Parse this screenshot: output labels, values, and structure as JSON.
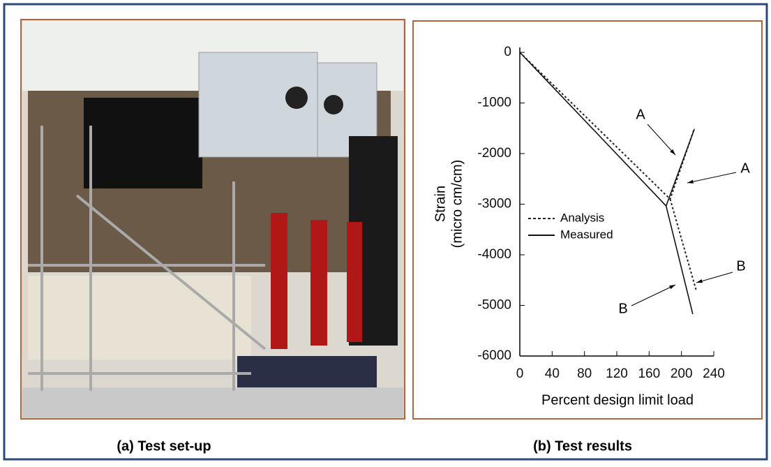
{
  "panels": {
    "left_caption": "(a) Test set-up",
    "right_caption": "(b) Test results"
  },
  "chart_data": {
    "type": "line",
    "xlabel": "Percent design limit load",
    "ylabel": [
      "Strain",
      "(micro cm/cm)"
    ],
    "xlim": [
      0,
      240
    ],
    "ylim": [
      -6000,
      0
    ],
    "xticks": [
      0,
      40,
      80,
      120,
      160,
      200,
      240
    ],
    "yticks": [
      0,
      -1000,
      -2000,
      -3000,
      -4000,
      -5000,
      -6000
    ],
    "series": [
      {
        "name": "Analysis",
        "color": "#222222",
        "dash": true,
        "x": [
          0,
          186,
          216,
          null,
          186,
          218
        ],
        "values": [
          0,
          -2900,
          -1500,
          null,
          -2900,
          -4690
        ]
      },
      {
        "name": "Measured",
        "color": "#111111",
        "dash": false,
        "x": [
          0,
          181,
          216,
          null,
          181,
          214
        ],
        "values": [
          0,
          -3034,
          -1517,
          null,
          -3034,
          -5172
        ]
      }
    ],
    "annotations": [
      "A",
      "A",
      "B",
      "B"
    ]
  }
}
